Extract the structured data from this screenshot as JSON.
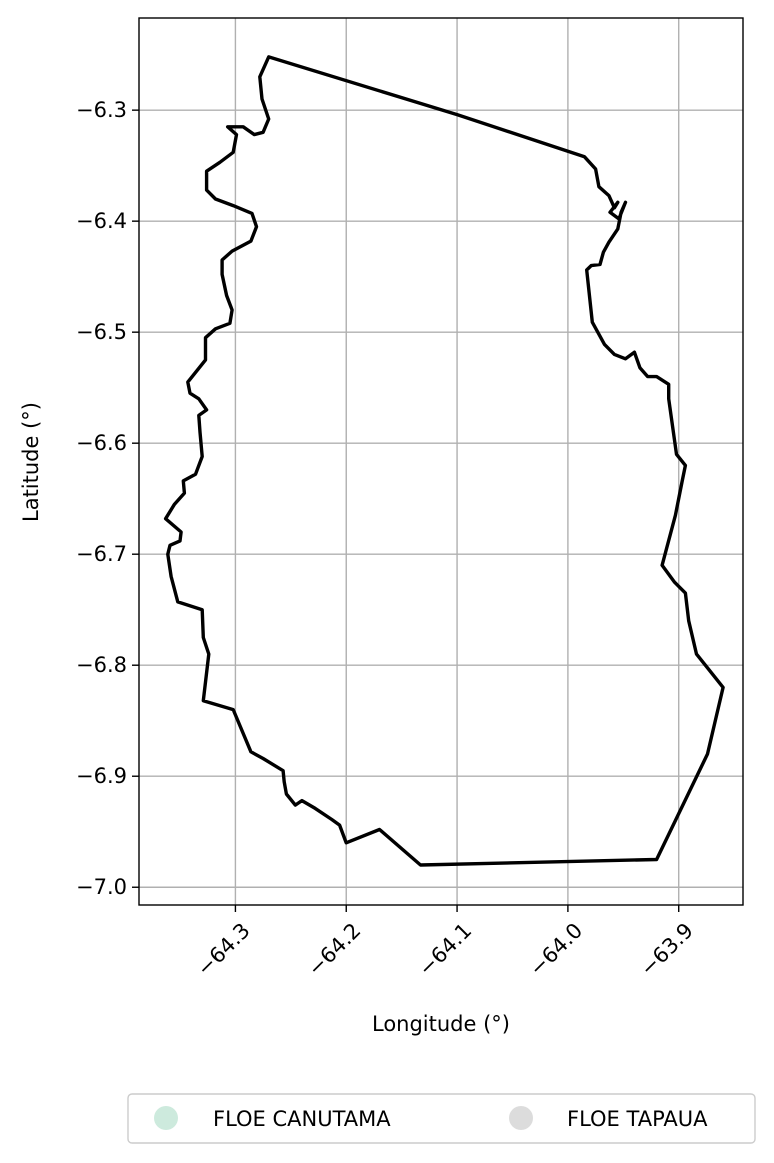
{
  "chart_data": {
    "type": "map",
    "xlabel": "Longitude (°)",
    "ylabel": "Latitude (°)",
    "xlim": [
      -64.387,
      -63.842
    ],
    "ylim": [
      -7.016,
      -6.217
    ],
    "x_ticks": [
      -64.3,
      -64.2,
      -64.1,
      -64.0,
      -63.9
    ],
    "x_tick_labels": [
      "−64.3",
      "−64.2",
      "−64.1",
      "−64.0",
      "−63.9"
    ],
    "y_ticks": [
      -6.3,
      -6.4,
      -6.5,
      -6.6,
      -6.7,
      -6.8,
      -6.9,
      -7.0
    ],
    "y_tick_labels": [
      "−6.3",
      "−6.4",
      "−6.5",
      "−6.6",
      "−6.7",
      "−6.8",
      "−6.9",
      "−7.0"
    ],
    "grid": true,
    "outline": [
      [
        -64.27,
        -6.252
      ],
      [
        -64.1,
        -6.304
      ],
      [
        -63.985,
        -6.342
      ],
      [
        -63.975,
        -6.353
      ],
      [
        -63.972,
        -6.369
      ],
      [
        -63.963,
        -6.377
      ],
      [
        -63.958,
        -6.388
      ],
      [
        -63.955,
        -6.383
      ],
      [
        -63.962,
        -6.392
      ],
      [
        -63.954,
        -6.398
      ],
      [
        -63.948,
        -6.383
      ],
      [
        -63.952,
        -6.392
      ],
      [
        -63.955,
        -6.407
      ],
      [
        -63.963,
        -6.419
      ],
      [
        -63.968,
        -6.428
      ],
      [
        -63.971,
        -6.439
      ],
      [
        -63.979,
        -6.44
      ],
      [
        -63.983,
        -6.444
      ],
      [
        -63.978,
        -6.491
      ],
      [
        -63.967,
        -6.511
      ],
      [
        -63.958,
        -6.52
      ],
      [
        -63.948,
        -6.524
      ],
      [
        -63.94,
        -6.518
      ],
      [
        -63.935,
        -6.532
      ],
      [
        -63.928,
        -6.54
      ],
      [
        -63.92,
        -6.54
      ],
      [
        -63.909,
        -6.547
      ],
      [
        -63.909,
        -6.56
      ],
      [
        -63.902,
        -6.61
      ],
      [
        -63.894,
        -6.62
      ],
      [
        -63.897,
        -6.635
      ],
      [
        -63.903,
        -6.665
      ],
      [
        -63.915,
        -6.71
      ],
      [
        -63.904,
        -6.725
      ],
      [
        -63.894,
        -6.735
      ],
      [
        -63.891,
        -6.76
      ],
      [
        -63.884,
        -6.79
      ],
      [
        -63.86,
        -6.82
      ],
      [
        -63.874,
        -6.88
      ],
      [
        -63.92,
        -6.975
      ],
      [
        -64.133,
        -6.98
      ],
      [
        -64.17,
        -6.948
      ],
      [
        -64.2,
        -6.96
      ],
      [
        -64.206,
        -6.944
      ],
      [
        -64.213,
        -6.939
      ],
      [
        -64.228,
        -6.929
      ],
      [
        -64.24,
        -6.922
      ],
      [
        -64.246,
        -6.926
      ],
      [
        -64.254,
        -6.916
      ],
      [
        -64.256,
        -6.905
      ],
      [
        -64.257,
        -6.895
      ],
      [
        -64.275,
        -6.884
      ],
      [
        -64.286,
        -6.878
      ],
      [
        -64.302,
        -6.84
      ],
      [
        -64.329,
        -6.832
      ],
      [
        -64.324,
        -6.79
      ],
      [
        -64.329,
        -6.775
      ],
      [
        -64.33,
        -6.75
      ],
      [
        -64.352,
        -6.743
      ],
      [
        -64.358,
        -6.72
      ],
      [
        -64.361,
        -6.7
      ],
      [
        -64.359,
        -6.692
      ],
      [
        -64.35,
        -6.688
      ],
      [
        -64.349,
        -6.68
      ],
      [
        -64.363,
        -6.668
      ],
      [
        -64.355,
        -6.655
      ],
      [
        -64.346,
        -6.645
      ],
      [
        -64.347,
        -6.634
      ],
      [
        -64.336,
        -6.628
      ],
      [
        -64.33,
        -6.612
      ],
      [
        -64.332,
        -6.59
      ],
      [
        -64.333,
        -6.575
      ],
      [
        -64.326,
        -6.57
      ],
      [
        -64.333,
        -6.56
      ],
      [
        -64.341,
        -6.555
      ],
      [
        -64.343,
        -6.545
      ],
      [
        -64.327,
        -6.525
      ],
      [
        -64.327,
        -6.505
      ],
      [
        -64.318,
        -6.497
      ],
      [
        -64.305,
        -6.492
      ],
      [
        -64.303,
        -6.48
      ],
      [
        -64.308,
        -6.467
      ],
      [
        -64.312,
        -6.448
      ],
      [
        -64.312,
        -6.435
      ],
      [
        -64.303,
        -6.427
      ],
      [
        -64.286,
        -6.418
      ],
      [
        -64.281,
        -6.405
      ],
      [
        -64.285,
        -6.393
      ],
      [
        -64.302,
        -6.386
      ],
      [
        -64.318,
        -6.38
      ],
      [
        -64.326,
        -6.372
      ],
      [
        -64.326,
        -6.355
      ],
      [
        -64.314,
        -6.347
      ],
      [
        -64.302,
        -6.338
      ],
      [
        -64.299,
        -6.322
      ],
      [
        -64.307,
        -6.315
      ],
      [
        -64.293,
        -6.315
      ],
      [
        -64.283,
        -6.322
      ],
      [
        -64.275,
        -6.32
      ],
      [
        -64.27,
        -6.308
      ],
      [
        -64.276,
        -6.29
      ],
      [
        -64.278,
        -6.27
      ],
      [
        -64.27,
        -6.252
      ]
    ],
    "legend": [
      {
        "label": "FLOE CANUTAMA",
        "color": "#cdeadd"
      },
      {
        "label": "FLOE TAPAUA",
        "color": "#dcdcdc"
      }
    ],
    "legend_placement": "bottom"
  }
}
